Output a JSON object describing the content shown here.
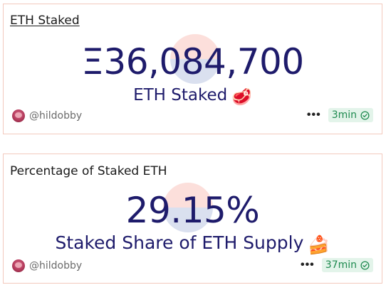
{
  "cards": [
    {
      "title": "ETH Staked",
      "value": "Ξ36,084,700",
      "subtitle": "ETH Staked",
      "emoji": "🥩",
      "author": "@hildobby",
      "more": "•••",
      "refresh_time": "3min"
    },
    {
      "title": "Percentage of Staked ETH",
      "value": "29.15%",
      "subtitle": "Staked Share of ETH Supply",
      "emoji": "🍰",
      "author": "@hildobby",
      "more": "•••",
      "refresh_time": "37min"
    }
  ],
  "colors": {
    "value_text": "#1e1b6b",
    "card_border": "#f3c9bd",
    "badge_bg": "#e3f4ea",
    "badge_text": "#1e8a4f"
  },
  "icons": {
    "more": "more-horizontal-icon",
    "status": "check-circle-icon",
    "watermark": "dune-logo-icon"
  }
}
